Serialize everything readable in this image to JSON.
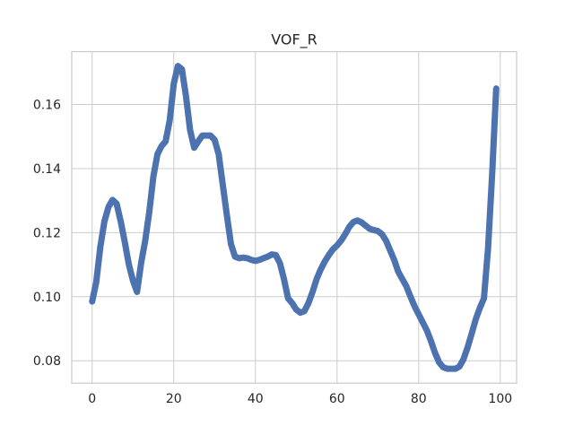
{
  "chart_data": {
    "type": "line",
    "title": "VOF_R",
    "xlabel": "",
    "ylabel": "",
    "xlim": [
      -5,
      104
    ],
    "ylim": [
      0.073,
      0.1765
    ],
    "xticks": [
      0,
      20,
      40,
      60,
      80,
      100
    ],
    "xtick_labels": [
      "0",
      "20",
      "40",
      "60",
      "80",
      "100"
    ],
    "yticks": [
      0.08,
      0.1,
      0.12,
      0.14,
      0.16
    ],
    "ytick_labels": [
      "0.08",
      "0.10",
      "0.12",
      "0.14",
      "0.16"
    ],
    "grid": true,
    "legend": "none",
    "colors": {
      "line": "#4c72b0",
      "grid": "#cccccc",
      "text": "#262626"
    },
    "series": [
      {
        "x": [
          0,
          1,
          2,
          3,
          4,
          5,
          6,
          7,
          8,
          9,
          10,
          11,
          12,
          13,
          14,
          15,
          16,
          17,
          18,
          19,
          20,
          21,
          22,
          23,
          24,
          25,
          26,
          27,
          28,
          29,
          30,
          31,
          32,
          33,
          34,
          35,
          36,
          37,
          38,
          39,
          40,
          41,
          42,
          43,
          44,
          45,
          46,
          47,
          48,
          49,
          50,
          51,
          52,
          53,
          54,
          55,
          56,
          57,
          58,
          59,
          60,
          61,
          62,
          63,
          64,
          65,
          66,
          67,
          68,
          69,
          70,
          71,
          72,
          73,
          74,
          75,
          76,
          77,
          78,
          79,
          80,
          81,
          82,
          83,
          84,
          85,
          86,
          87,
          88,
          89,
          90,
          91,
          92,
          93,
          94,
          95,
          96,
          97,
          98,
          99
        ],
        "values": [
          0.0985,
          0.1045,
          0.1155,
          0.1235,
          0.128,
          0.1302,
          0.129,
          0.1235,
          0.117,
          0.11,
          0.105,
          0.1015,
          0.1105,
          0.1175,
          0.1265,
          0.1375,
          0.1445,
          0.147,
          0.1485,
          0.155,
          0.1665,
          0.172,
          0.171,
          0.1625,
          0.152,
          0.1465,
          0.1485,
          0.1503,
          0.1503,
          0.1503,
          0.149,
          0.1445,
          0.135,
          0.1255,
          0.1165,
          0.1125,
          0.112,
          0.1122,
          0.112,
          0.1115,
          0.1112,
          0.1115,
          0.112,
          0.1125,
          0.1132,
          0.113,
          0.1105,
          0.1055,
          0.0995,
          0.098,
          0.096,
          0.095,
          0.0955,
          0.098,
          0.1015,
          0.1055,
          0.1085,
          0.111,
          0.113,
          0.1148,
          0.116,
          0.1175,
          0.1195,
          0.1218,
          0.1233,
          0.1238,
          0.1232,
          0.1222,
          0.1212,
          0.1208,
          0.1205,
          0.1195,
          0.1175,
          0.1145,
          0.1115,
          0.1078,
          0.1055,
          0.1032,
          0.1,
          0.097,
          0.0945,
          0.092,
          0.0895,
          0.0862,
          0.0825,
          0.0795,
          0.078,
          0.0775,
          0.0775,
          0.0775,
          0.0782,
          0.0805,
          0.0842,
          0.0885,
          0.093,
          0.0965,
          0.0995,
          0.115,
          0.138,
          0.165
        ]
      }
    ]
  }
}
